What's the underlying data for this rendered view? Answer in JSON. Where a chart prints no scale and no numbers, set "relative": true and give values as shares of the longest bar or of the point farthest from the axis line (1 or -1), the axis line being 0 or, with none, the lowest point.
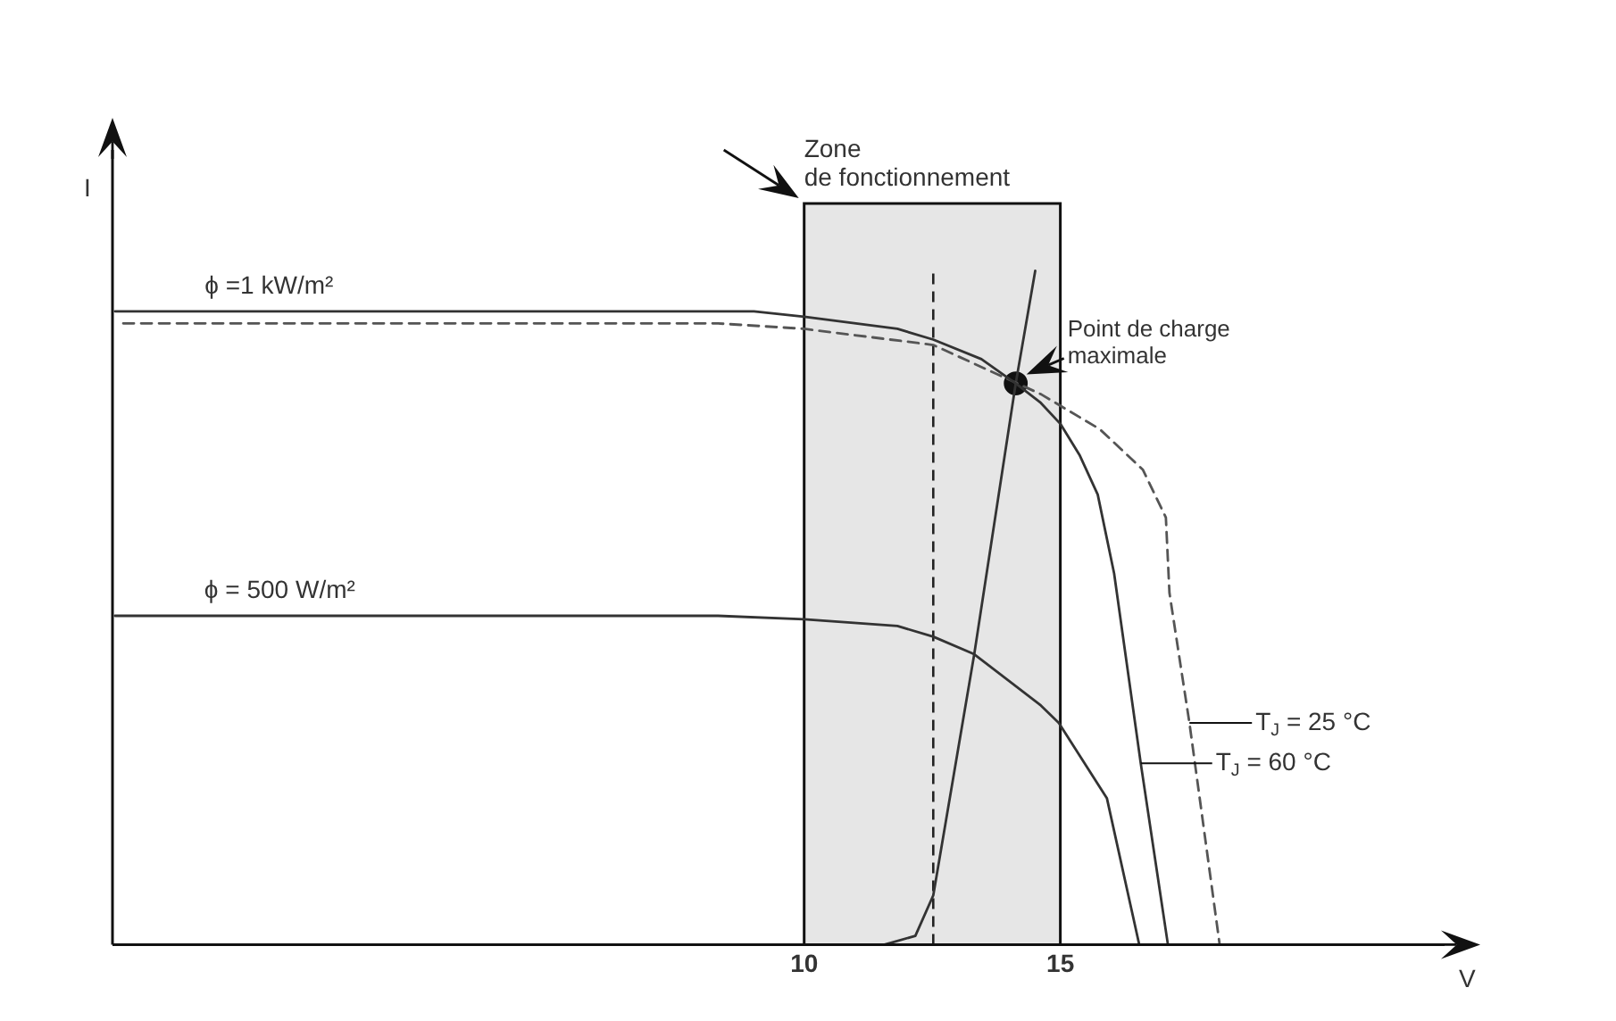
{
  "chart_data": {
    "type": "line",
    "xlabel": "V",
    "ylabel": "I",
    "relative": true,
    "xlim": [
      -3.5,
      22.5
    ],
    "xticks": [
      10,
      15
    ],
    "tick_labels": "x",
    "grid": false,
    "legend": false,
    "marker": "none",
    "series": [
      {
        "name": "T$_{J}$ = 60 °C",
        "color": "#333333",
        "line_style": "solid",
        "x": [
          -3.45,
          9.02,
          10,
          11.82,
          12.52,
          13.46,
          14.13,
          14.62,
          15,
          15.38,
          15.73,
          16.05,
          16.57,
          17.1
        ],
        "values": [
          0.94,
          0.94,
          0.932,
          0.914,
          0.898,
          0.869,
          0.833,
          0.804,
          0.773,
          0.726,
          0.668,
          0.551,
          0.269,
          0
        ]
      },
      {
        "name": "T$_{J}$ = 25 °C",
        "color": "#555555",
        "line_style": "dashed",
        "x": [
          -3.29,
          8.32,
          10,
          12.52,
          14.62,
          15.77,
          16.61,
          17.06,
          17.13,
          17.52,
          18.11
        ],
        "values": [
          0.922,
          0.922,
          0.914,
          0.89,
          0.817,
          0.765,
          0.705,
          0.634,
          0.522,
          0.329,
          0
        ]
      },
      {
        "name": "ϕ = 500 W/m²",
        "color": "#333333",
        "line_style": "solid",
        "x": [
          -3.45,
          8.32,
          10,
          11.82,
          12.52,
          13.32,
          14.62,
          14.97,
          15.91,
          16.54
        ],
        "values": [
          0.488,
          0.488,
          0.483,
          0.473,
          0.457,
          0.431,
          0.355,
          0.329,
          0.217,
          0
        ]
      },
      {
        "color": "#333333",
        "line_style": "solid",
        "x": [
          11.57,
          12.17,
          12.52,
          13.32,
          14.13,
          14.51
        ],
        "values": [
          0,
          0.013,
          0.073,
          0.431,
          0.833,
          1
        ]
      },
      {
        "type": "scatter",
        "marker": "circle",
        "color": "#111111",
        "x": [
          14.13
        ],
        "values": [
          0.833
        ]
      }
    ],
    "bands": [
      {
        "axis": "x",
        "from": 10,
        "to": 15,
        "label": "Zone\nde fonctionnement",
        "color": "#e6e6e6"
      }
    ],
    "ref_lines": [
      {
        "axis": "x",
        "value": 12.52,
        "line_style": "dashed",
        "color": "#222222"
      }
    ],
    "annotations": [
      {
        "text": "ϕ =1 kW/m²",
        "x": -1.7,
        "y": 0.94
      },
      {
        "text": "Point de charge\nmaximale",
        "x": 14.13,
        "y": 0.833
      }
    ]
  }
}
